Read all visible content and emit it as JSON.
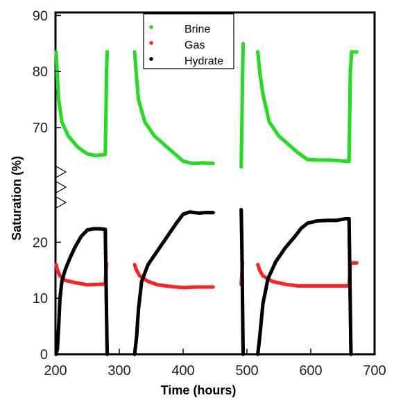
{
  "chart_data": {
    "type": "scatter",
    "xlabel": "Time (hours)",
    "ylabel": "Saturation (%)",
    "xlim": [
      200,
      700
    ],
    "x_ticks": [
      200,
      300,
      400,
      500,
      600,
      700
    ],
    "y_ticks": [
      {
        "value": 0,
        "label": "0"
      },
      {
        "value": 10,
        "label": "10"
      },
      {
        "value": 20,
        "label": "20"
      },
      {
        "value": 70,
        "label": "70"
      },
      {
        "value": 80,
        "label": "80"
      },
      {
        "value": 90,
        "label": "90"
      }
    ],
    "y_axis_break": true,
    "legend_position": "top-center",
    "grid": false,
    "series": [
      {
        "name": "Brine",
        "color": "#22dd22",
        "segments": [
          [
            [
              201,
              83.5
            ],
            [
              203,
              79
            ],
            [
              205,
              75
            ],
            [
              210,
              71
            ],
            [
              220,
              68.5
            ],
            [
              235,
              66.5
            ],
            [
              250,
              65.3
            ],
            [
              262,
              65
            ],
            [
              278,
              65.2
            ],
            [
              279,
              72
            ],
            [
              280,
              80
            ],
            [
              281,
              83.5
            ]
          ],
          [
            [
              324,
              83.5
            ],
            [
              327,
              79
            ],
            [
              330,
              75
            ],
            [
              340,
              71
            ],
            [
              355,
              68.5
            ],
            [
              370,
              67
            ],
            [
              385,
              65.5
            ],
            [
              400,
              64
            ],
            [
              415,
              63.6
            ],
            [
              430,
              63.7
            ],
            [
              447,
              63.6
            ]
          ],
          [
            [
              491,
              63
            ],
            [
              492,
              70
            ],
            [
              493,
              78
            ],
            [
              494,
              85
            ]
          ],
          [
            [
              517,
              83.5
            ],
            [
              520,
              80
            ],
            [
              525,
              76
            ],
            [
              535,
              71
            ],
            [
              550,
              68.5
            ],
            [
              565,
              67
            ],
            [
              580,
              65.5
            ],
            [
              595,
              64.3
            ],
            [
              610,
              64.2
            ],
            [
              630,
              64.2
            ],
            [
              655,
              64
            ],
            [
              660,
              64
            ],
            [
              661,
              72
            ],
            [
              662,
              80
            ],
            [
              664,
              83.5
            ],
            [
              672,
              83.5
            ]
          ]
        ]
      },
      {
        "name": "Gas",
        "color": "#ff2222",
        "segments": [
          [
            [
              201,
              16
            ],
            [
              203,
              15
            ],
            [
              207,
              14
            ],
            [
              215,
              13.2
            ],
            [
              230,
              12.8
            ],
            [
              250,
              12.4
            ],
            [
              270,
              12.5
            ],
            [
              278,
              12.5
            ],
            [
              279,
              14.5
            ],
            [
              280,
              16.2
            ]
          ],
          [
            [
              324,
              16
            ],
            [
              327,
              15
            ],
            [
              332,
              14
            ],
            [
              345,
              13
            ],
            [
              360,
              12.4
            ],
            [
              380,
              12.1
            ],
            [
              400,
              11.9
            ],
            [
              420,
              12
            ],
            [
              447,
              12
            ]
          ],
          [
            [
              491,
              12.5
            ],
            [
              492,
              14
            ],
            [
              493,
              16.5
            ]
          ],
          [
            [
              517,
              16
            ],
            [
              520,
              15
            ],
            [
              525,
              14
            ],
            [
              540,
              13
            ],
            [
              560,
              12.5
            ],
            [
              580,
              12.2
            ],
            [
              600,
              12.2
            ],
            [
              620,
              12.2
            ],
            [
              640,
              12.2
            ],
            [
              660,
              12.2
            ],
            [
              661,
              14
            ],
            [
              662,
              16.3
            ],
            [
              672,
              16.3
            ]
          ]
        ]
      },
      {
        "name": "Hydrate",
        "color": "#000000",
        "segments": [
          [
            [
              201,
              0
            ],
            [
              203,
              1
            ],
            [
              205,
              5
            ],
            [
              207,
              10
            ],
            [
              210,
              13
            ],
            [
              215,
              15
            ],
            [
              222,
              17
            ],
            [
              230,
              19
            ],
            [
              240,
              21
            ],
            [
              250,
              22.2
            ],
            [
              260,
              22.4
            ],
            [
              270,
              22.4
            ],
            [
              278,
              22.3
            ],
            [
              279,
              15
            ],
            [
              280,
              7
            ],
            [
              281,
              0
            ]
          ],
          [
            [
              324,
              0
            ],
            [
              327,
              3
            ],
            [
              330,
              8
            ],
            [
              335,
              13
            ],
            [
              345,
              16
            ],
            [
              360,
              18.5
            ],
            [
              375,
              21
            ],
            [
              390,
              23.5
            ],
            [
              400,
              25
            ],
            [
              410,
              25.4
            ],
            [
              425,
              25.2
            ],
            [
              435,
              25.3
            ],
            [
              447,
              25.3
            ]
          ],
          [
            [
              491,
              25.8
            ],
            [
              492,
              20
            ],
            [
              493,
              10
            ],
            [
              494,
              0
            ]
          ],
          [
            [
              517,
              0
            ],
            [
              520,
              3
            ],
            [
              525,
              9
            ],
            [
              533,
              13.5
            ],
            [
              545,
              16.5
            ],
            [
              560,
              19
            ],
            [
              575,
              21
            ],
            [
              585,
              22.5
            ],
            [
              595,
              23.4
            ],
            [
              610,
              23.8
            ],
            [
              625,
              23.9
            ],
            [
              640,
              23.9
            ],
            [
              655,
              24.2
            ],
            [
              660,
              24.2
            ],
            [
              661,
              16
            ],
            [
              662,
              8
            ],
            [
              663,
              0
            ]
          ]
        ]
      }
    ]
  }
}
